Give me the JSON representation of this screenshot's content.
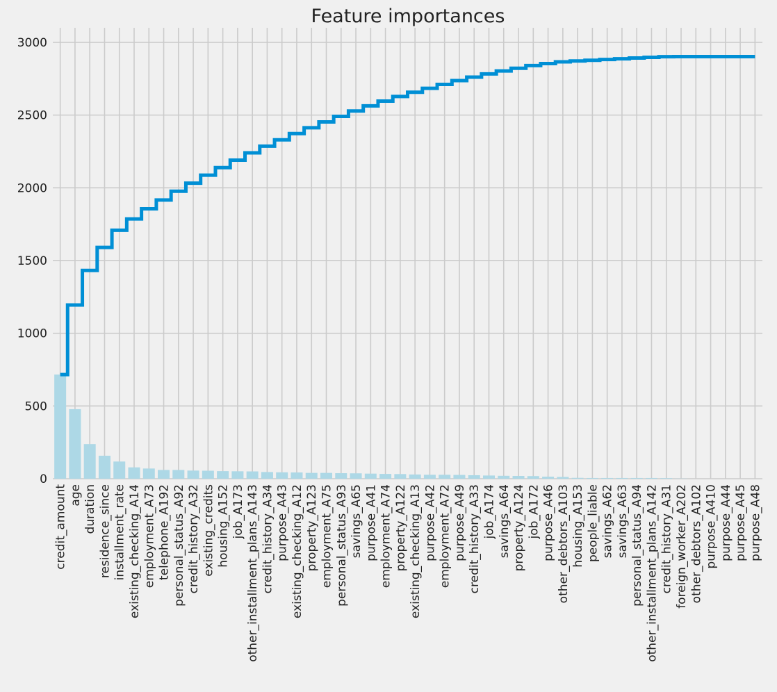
{
  "chart_data": {
    "type": "bar",
    "title": "Feature importances",
    "xlabel": "",
    "ylabel": "",
    "ylim": [
      0,
      3100
    ],
    "yticks": [
      0,
      500,
      1000,
      1500,
      2000,
      2500,
      3000
    ],
    "grid": true,
    "bar_color": "#add8e6",
    "line_color": "#008fd5",
    "background": "#f0f0f0",
    "grid_color": "#cbcbcb",
    "categories": [
      "credit_amount",
      "age",
      "duration",
      "residence_since",
      "installment_rate",
      "existing_checking_A14",
      "employment_A73",
      "telephone_A192",
      "personal_status_A92",
      "credit_history_A32",
      "existing_credits",
      "housing_A152",
      "job_A173",
      "other_installment_plans_A143",
      "credit_history_A34",
      "purpose_A43",
      "existing_checking_A12",
      "property_A123",
      "employment_A75",
      "personal_status_A93",
      "savings_A65",
      "purpose_A41",
      "employment_A74",
      "property_A122",
      "existing_checking_A13",
      "purpose_A42",
      "employment_A72",
      "purpose_A49",
      "credit_history_A33",
      "job_A174",
      "savings_A64",
      "property_A124",
      "job_A172",
      "purpose_A46",
      "other_debtors_A103",
      "housing_A153",
      "people_liable",
      "savings_A62",
      "savings_A63",
      "personal_status_A94",
      "other_installment_plans_A142",
      "credit_history_A31",
      "foreign_worker_A202",
      "other_debtors_A102",
      "purpose_A410",
      "purpose_A44",
      "purpose_A45",
      "purpose_A48"
    ],
    "series": [
      {
        "type": "bar",
        "values": [
          716,
          478,
          238,
          158,
          118,
          78,
          70,
          60,
          60,
          56,
          55,
          52,
          51,
          50,
          46,
          44,
          43,
          40,
          40,
          38,
          37,
          35,
          33,
          32,
          29,
          27,
          27,
          26,
          24,
          22,
          20,
          19,
          18,
          14,
          12,
          6,
          5,
          5,
          5,
          5,
          5,
          4,
          1,
          0,
          0,
          0,
          0,
          0
        ]
      },
      {
        "type": "step",
        "values": [
          716,
          1194,
          1432,
          1590,
          1708,
          1786,
          1856,
          1916,
          1976,
          2032,
          2087,
          2139,
          2190,
          2240,
          2286,
          2330,
          2373,
          2413,
          2453,
          2491,
          2528,
          2563,
          2596,
          2628,
          2657,
          2684,
          2711,
          2737,
          2761,
          2783,
          2803,
          2822,
          2840,
          2854,
          2866,
          2872,
          2877,
          2882,
          2887,
          2892,
          2897,
          2901,
          2902,
          2902,
          2902,
          2902,
          2902,
          2902
        ]
      }
    ]
  }
}
